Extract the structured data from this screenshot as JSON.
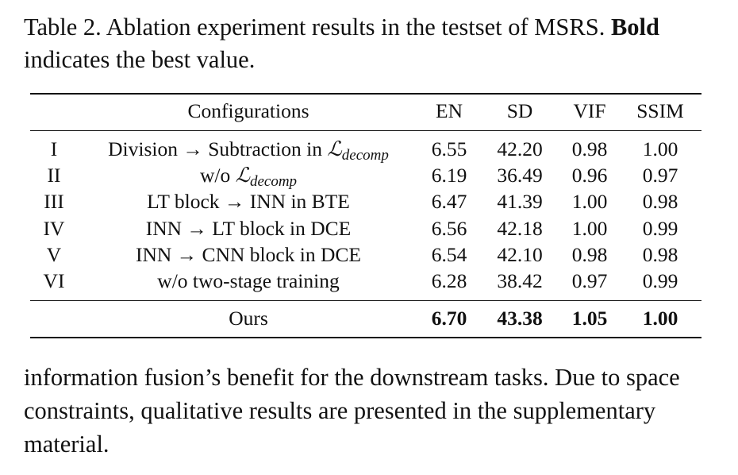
{
  "caption": {
    "prefix": "Table 2. Ablation experiment results in the testset of MSRS.",
    "bold": "Bold",
    "suffix": "indicates the best value."
  },
  "table": {
    "headers": [
      "Configurations",
      "EN",
      "SD",
      "VIF",
      "SSIM"
    ],
    "rows": [
      {
        "id": "I",
        "pre": "Division → Subtraction in ",
        "sym": "ℒ",
        "sub": "decomp",
        "post": "",
        "en": "6.55",
        "sd": "42.20",
        "vif": "0.98",
        "ssim": "1.00"
      },
      {
        "id": "II",
        "pre": "w/o ",
        "sym": "ℒ",
        "sub": "decomp",
        "post": "",
        "en": "6.19",
        "sd": "36.49",
        "vif": "0.96",
        "ssim": "0.97"
      },
      {
        "id": "III",
        "pre": "LT block → INN in BTE",
        "sym": "",
        "sub": "",
        "post": "",
        "en": "6.47",
        "sd": "41.39",
        "vif": "1.00",
        "ssim": "0.98"
      },
      {
        "id": "IV",
        "pre": "INN → LT block in DCE",
        "sym": "",
        "sub": "",
        "post": "",
        "en": "6.56",
        "sd": "42.18",
        "vif": "1.00",
        "ssim": "0.99"
      },
      {
        "id": "V",
        "pre": "INN → CNN block in DCE",
        "sym": "",
        "sub": "",
        "post": "",
        "en": "6.54",
        "sd": "42.10",
        "vif": "0.98",
        "ssim": "0.98"
      },
      {
        "id": "VI",
        "pre": "w/o two-stage training",
        "sym": "",
        "sub": "",
        "post": "",
        "en": "6.28",
        "sd": "38.42",
        "vif": "0.97",
        "ssim": "0.99"
      }
    ],
    "ours": {
      "label": "Ours",
      "en": "6.70",
      "sd": "43.38",
      "vif": "1.05",
      "ssim": "1.00"
    }
  },
  "body_text": "information fusion’s benefit for the downstream tasks. Due to space constraints, qualitative results are presented in the supplementary material."
}
